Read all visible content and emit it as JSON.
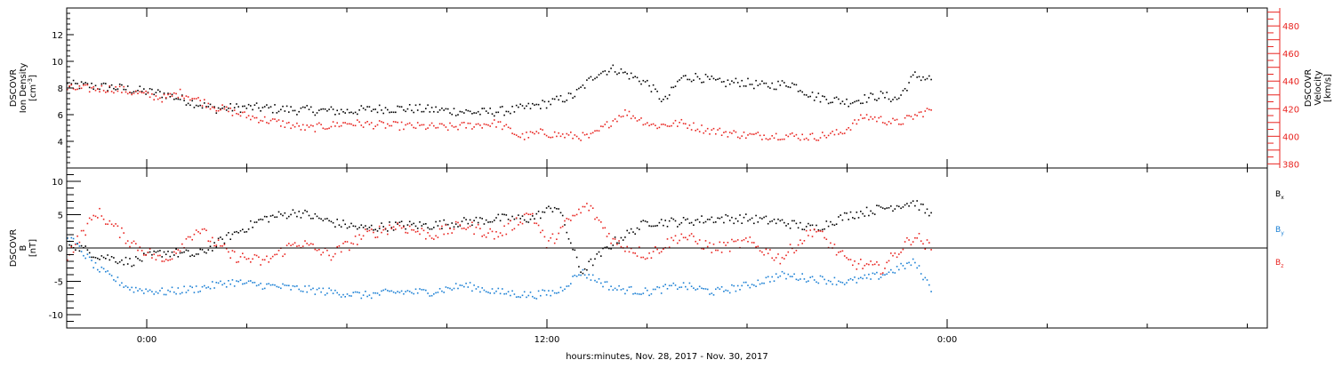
{
  "figure": {
    "xlabel": "hours:minutes, Nov. 28, 2017 - Nov. 30, 2017"
  },
  "colors": {
    "axis": "#000000",
    "black_series": "#000000",
    "red_series": "#e8231f",
    "blue_series": "#1a7fd4"
  },
  "chart_data": [
    {
      "type": "scatter",
      "panel": "top",
      "xaxis": {
        "unit": "hours since 2017-11-28 00:00",
        "range": [
          -2.4,
          33.6
        ],
        "tick_values": [
          0,
          12,
          24
        ],
        "tick_labels": [
          "0:00",
          "12:00",
          "0:00"
        ]
      },
      "left_axis": {
        "label_lines": [
          "DSCOVR",
          "Ion Density"
        ],
        "unit_label": "[cm",
        "unit_superscript": "-3",
        "unit_close": "]",
        "range": [
          2.0,
          14.0
        ],
        "tick_values": [
          4,
          6,
          8,
          10,
          12
        ],
        "tick_labels": [
          "4",
          "6",
          "8",
          "10",
          "12"
        ]
      },
      "right_axis": {
        "label_lines": [
          "DSCOVR",
          "Velocity",
          "[km/s]"
        ],
        "range": [
          377,
          493
        ],
        "tick_values": [
          380,
          400,
          420,
          440,
          460,
          480
        ],
        "tick_labels": [
          "380",
          "400",
          "420",
          "440",
          "460",
          "480"
        ]
      },
      "series": [
        {
          "color_key": "black_series",
          "axis": "left",
          "x": [
            -2.4,
            -1.0,
            0.5,
            2.0,
            3.0,
            4.5,
            6.0,
            7.0,
            8.0,
            10.0,
            11.0,
            12.0,
            12.8,
            13.5,
            14.0,
            15.0,
            15.5,
            16.0,
            16.5,
            17.2,
            17.8,
            18.5,
            19.3,
            20.0,
            21.0,
            22.0,
            22.5,
            23.0,
            23.5
          ],
          "y": [
            8.3,
            8.1,
            7.6,
            6.5,
            6.6,
            6.4,
            6.3,
            6.5,
            6.5,
            6.2,
            6.4,
            6.9,
            7.5,
            9.2,
            9.5,
            8.4,
            7.0,
            8.8,
            8.9,
            8.4,
            8.5,
            8.2,
            8.4,
            7.4,
            7.0,
            7.5,
            7.2,
            9.0,
            8.7
          ]
        },
        {
          "color_key": "red_series",
          "axis": "right",
          "x": [
            -2.4,
            -1.0,
            0.5,
            1.0,
            2.0,
            3.0,
            4.0,
            4.8,
            6.0,
            7.5,
            9.0,
            10.5,
            11.2,
            11.8,
            12.5,
            13.3,
            14.3,
            15.2,
            16.0,
            16.8,
            18.0,
            19.0,
            20.0,
            20.8,
            21.5,
            22.5,
            23.5
          ],
          "y": [
            435,
            435,
            428,
            432,
            422,
            415,
            410,
            406,
            410,
            408,
            407,
            410,
            400,
            403,
            401,
            400,
            418,
            408,
            410,
            405,
            401,
            401,
            400,
            403,
            415,
            410,
            420
          ]
        }
      ]
    },
    {
      "type": "scatter",
      "panel": "bottom",
      "xaxis": {
        "unit": "hours since 2017-11-28 00:00",
        "range": [
          -2.4,
          33.6
        ],
        "tick_values": [
          0,
          12,
          24
        ],
        "tick_labels": [
          "0:00",
          "12:00",
          "0:00"
        ]
      },
      "left_axis": {
        "label_lines": [
          "DSCOVR",
          "B",
          "[nT]"
        ],
        "range": [
          -12,
          12
        ],
        "tick_values": [
          -10,
          -5,
          0,
          5,
          10
        ],
        "tick_labels": [
          "-10",
          "-5",
          "0",
          "5",
          "10"
        ]
      },
      "legend": {
        "placement": "right",
        "entries": [
          {
            "letter": "B",
            "sub": "x",
            "color_key": "black_series"
          },
          {
            "letter": "B",
            "sub": "y",
            "color_key": "blue_series"
          },
          {
            "letter": "B",
            "sub": "z",
            "color_key": "red_series"
          }
        ]
      },
      "series": [
        {
          "name": "Bx",
          "color_key": "black_series",
          "x": [
            -2.4,
            -1.5,
            -0.5,
            0.5,
            1.5,
            2.5,
            3.5,
            4.5,
            5.5,
            6.5,
            7.5,
            8.5,
            9.5,
            10.5,
            11.5,
            12.3,
            13.0,
            14.0,
            15.0,
            16.0,
            17.0,
            18.0,
            19.0,
            20.0,
            21.0,
            22.0,
            23.0,
            23.5
          ],
          "y": [
            1.0,
            -1.0,
            -2.0,
            -0.5,
            -1.0,
            2.0,
            4.5,
            5.5,
            4.0,
            3.0,
            3.5,
            3.5,
            4.0,
            4.5,
            4.5,
            6.5,
            -3.5,
            1.0,
            4.0,
            4.0,
            4.5,
            4.5,
            4.0,
            3.0,
            5.0,
            6.0,
            7.0,
            5.0
          ]
        },
        {
          "name": "By",
          "color_key": "blue_series",
          "x": [
            -2.4,
            -1.5,
            -0.5,
            0.5,
            1.5,
            2.5,
            3.5,
            4.5,
            5.5,
            6.5,
            7.5,
            8.5,
            9.5,
            10.5,
            11.5,
            12.3,
            13.0,
            14.0,
            15.0,
            16.0,
            17.0,
            18.0,
            19.0,
            20.0,
            21.0,
            22.0,
            23.0,
            23.5
          ],
          "y": [
            2.0,
            -3.0,
            -6.0,
            -6.5,
            -6.0,
            -5.0,
            -5.5,
            -6.0,
            -6.5,
            -7.0,
            -6.5,
            -6.5,
            -5.5,
            -6.5,
            -7.0,
            -6.5,
            -3.5,
            -6.0,
            -6.5,
            -5.5,
            -6.5,
            -5.5,
            -4.0,
            -4.5,
            -5.0,
            -4.0,
            -2.0,
            -6.0
          ]
        },
        {
          "name": "Bz",
          "color_key": "red_series",
          "x": [
            -2.4,
            -1.5,
            -0.5,
            0.5,
            1.5,
            2.5,
            3.5,
            4.5,
            5.5,
            6.5,
            7.5,
            8.5,
            9.5,
            10.5,
            11.5,
            12.0,
            12.6,
            13.2,
            14.0,
            15.0,
            16.0,
            17.0,
            18.0,
            19.0,
            20.0,
            21.0,
            22.0,
            23.0,
            23.5
          ],
          "y": [
            -1.0,
            5.5,
            1.0,
            -2.0,
            3.0,
            -1.0,
            -2.0,
            1.0,
            -1.0,
            2.0,
            3.5,
            2.0,
            3.5,
            2.0,
            5.5,
            0.5,
            4.0,
            6.5,
            1.0,
            -1.0,
            2.0,
            0.0,
            1.0,
            -1.5,
            3.0,
            -2.0,
            -3.0,
            2.0,
            0.0
          ]
        }
      ]
    }
  ]
}
